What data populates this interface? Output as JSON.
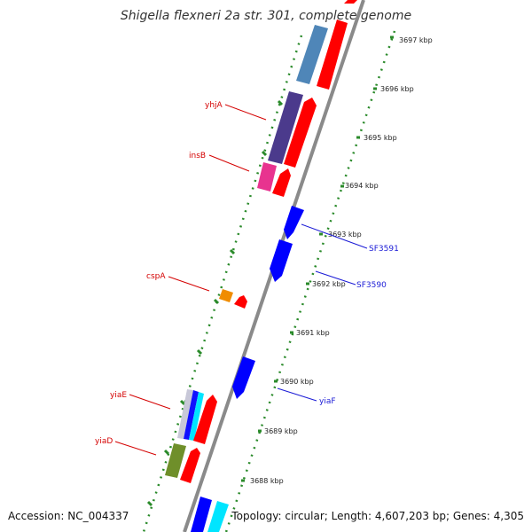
{
  "title": "Shigella flexneri 2a str. 301, complete genome",
  "footer": {
    "accession": "Accession: NC_004337",
    "summary": "Topology: circular; Length: 4,607,203 bp; Genes: 4,305"
  },
  "ruler_labels": [
    "3697 kbp",
    "3696 kbp",
    "3695 kbp",
    "3694 kbp",
    "3693 kbp",
    "3692 kbp",
    "3691 kbp",
    "3690 kbp",
    "3689 kbp",
    "3688 kbp"
  ],
  "gene_labels": {
    "yhjA": "yhjA",
    "insB": "insB",
    "cspA": "cspA",
    "yiaE": "yiaE",
    "yiaD": "yiaD",
    "SF3591": "SF3591",
    "SF3590": "SF3590",
    "yiaF": "yiaF"
  },
  "colors": {
    "backbone": "#8a8a8a",
    "ticks": "#2a8a2a",
    "cds_red": "#ff0000",
    "cds_blue": "#0000ff",
    "gene_label_red": "#d40000",
    "gene_label_blue": "#1a1ad6",
    "steel_blue": "#4f86b8",
    "purple": "#4b3a8c",
    "magenta": "#e8338f",
    "orange": "#f08c00",
    "olive": "#6f8f2a",
    "cyan": "#00e5ff"
  }
}
